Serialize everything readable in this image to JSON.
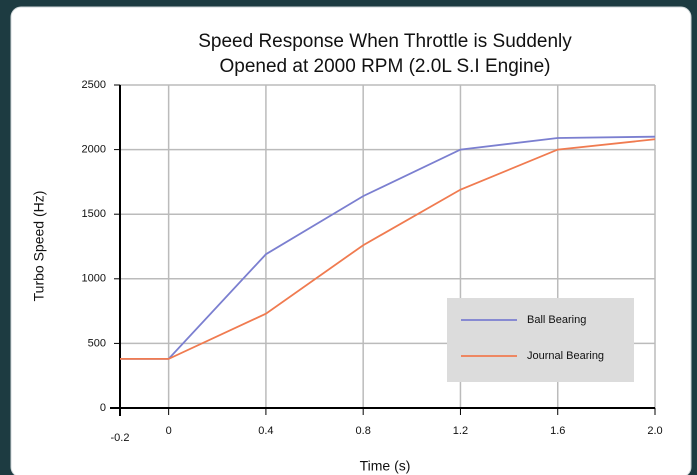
{
  "chart_data": {
    "type": "line",
    "title": [
      "Speed Response When Throttle is Suddenly",
      "Opened at 2000 RPM (2.0L S.I Engine)"
    ],
    "x_label": "Time (s)",
    "y_label": "Turbo Speed (Hz)",
    "x": [
      -0.2,
      0,
      0.4,
      0.8,
      1.2,
      1.6,
      2.0
    ],
    "series": [
      {
        "name": "Ball Bearing",
        "color": "#7b7fd0",
        "values": [
          380,
          380,
          1190,
          1640,
          2000,
          2090,
          2100
        ]
      },
      {
        "name": "Journal Bearing",
        "color": "#f07b50",
        "values": [
          380,
          380,
          730,
          1260,
          1690,
          2000,
          2080
        ]
      }
    ],
    "xlim": [
      -0.2,
      2.0
    ],
    "xticks": [
      -0.2,
      0,
      0.4,
      0.8,
      1.2,
      1.6,
      {
        "value": 2,
        "label": "2.0"
      }
    ],
    "ylim": [
      0,
      2500
    ],
    "yticks": [
      0,
      500,
      1000,
      1500,
      2000,
      2500
    ],
    "grid": true,
    "legend": "lower right"
  }
}
